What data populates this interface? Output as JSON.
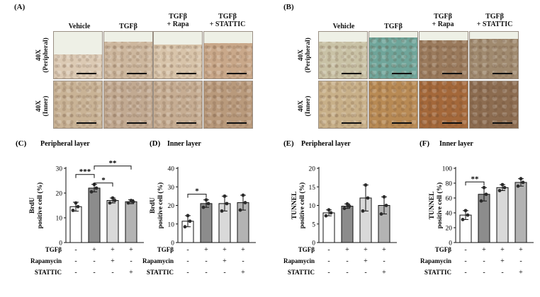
{
  "panel_A": {
    "label": "(A)",
    "column_headers": [
      "Vehicle",
      "TGFβ",
      "TGFβ\n+ Rapa",
      "TGFβ\n+ STATTIC"
    ],
    "row_labels": [
      "40X\n(Peripheral)",
      "40X\n(Inner)"
    ]
  },
  "panel_B": {
    "label": "(B)",
    "column_headers": [
      "Vehicle",
      "TGFβ",
      "TGFβ\n+ Rapa",
      "TGFβ\n+ STATTIC"
    ],
    "row_labels": [
      "40X\n(Peripheral)",
      "40X\n(Inner)"
    ]
  },
  "treatment_labels": [
    "TGFβ",
    "Rapamycin",
    "STATTIC"
  ],
  "treatment_matrix": [
    [
      "-",
      "+",
      "+",
      "+"
    ],
    [
      "-",
      "-",
      "+",
      "-"
    ],
    [
      "-",
      "-",
      "-",
      "+"
    ]
  ],
  "chart_data": [
    {
      "panel": "(C)",
      "type": "bar",
      "title": "Peripheral layer",
      "ylabel": "BrdU\npositive cell (%)",
      "ylim": [
        0,
        30
      ],
      "yticks": [
        0,
        10,
        20,
        30
      ],
      "values": [
        14.5,
        22,
        17,
        16.5
      ],
      "errors": [
        1.8,
        1.5,
        1.0,
        0.8
      ],
      "points": [
        [
          13,
          14.5,
          16
        ],
        [
          20.5,
          22,
          23.5
        ],
        [
          16,
          17,
          18
        ],
        [
          16,
          16.5,
          17
        ]
      ],
      "significance": [
        {
          "from": 0,
          "to": 1,
          "label": "***"
        },
        {
          "from": 1,
          "to": 2,
          "label": "*"
        },
        {
          "from": 1,
          "to": 3,
          "label": "**"
        }
      ]
    },
    {
      "panel": "(D)",
      "type": "bar",
      "title": "Inner layer",
      "ylabel": "BrdU\npositive cell (%)",
      "ylim": [
        0,
        40
      ],
      "yticks": [
        0,
        10,
        20,
        30,
        40
      ],
      "values": [
        11.5,
        21,
        21,
        21.5
      ],
      "errors": [
        3,
        2,
        4,
        4
      ],
      "points": [
        [
          8.5,
          11.5,
          14.5
        ],
        [
          19,
          21,
          23
        ],
        [
          17,
          21,
          25
        ],
        [
          17.5,
          21.5,
          25.5
        ]
      ],
      "significance": [
        {
          "from": 0,
          "to": 1,
          "label": "*"
        }
      ]
    },
    {
      "panel": "(E)",
      "type": "bar",
      "title": "Peripheral layer",
      "ylabel": "TUNNEL\npositive cell (%)",
      "ylim": [
        0,
        20
      ],
      "yticks": [
        0,
        5,
        10,
        15,
        20
      ],
      "values": [
        8,
        9.8,
        12,
        10
      ],
      "errors": [
        0.8,
        0.6,
        3.5,
        2.3
      ],
      "points": [
        [
          7.2,
          8,
          8.8
        ],
        [
          9.2,
          9.8,
          10.4
        ],
        [
          8.5,
          12,
          15.5
        ],
        [
          7.7,
          10,
          12.3
        ]
      ],
      "significance": []
    },
    {
      "panel": "(F)",
      "type": "bar",
      "title": "Inner layer",
      "ylabel": "TUNNEL\npositive cell (%)",
      "ylim": [
        0,
        100
      ],
      "yticks": [
        0,
        20,
        40,
        60,
        80,
        100
      ],
      "values": [
        37,
        65,
        74,
        81
      ],
      "errors": [
        6,
        9,
        4,
        5
      ],
      "points": [
        [
          31,
          37,
          43
        ],
        [
          56,
          65,
          74
        ],
        [
          70,
          74,
          78
        ],
        [
          76,
          81,
          86
        ]
      ],
      "significance": [
        {
          "from": 0,
          "to": 1,
          "label": "**"
        }
      ]
    }
  ],
  "colors": {
    "bar_fills": [
      "#ffffff",
      "#8c8c8c",
      "#d9d9d9",
      "#b3b3b3"
    ],
    "stroke": "#111111",
    "point": "#2a2a2a"
  },
  "micrographs": {
    "A_peripheral": [
      "#dccab4",
      "#cdb79e",
      "#d8c4aa",
      "#c9a88a"
    ],
    "A_inner": [
      "#c9b396",
      "#c2aa92",
      "#c6ad93",
      "#b99a7c"
    ],
    "B_peripheral": [
      "#c9c2a6",
      "#6fa59a",
      "#9a7a5c",
      "#a08a6f"
    ],
    "B_inner": [
      "#c8b089",
      "#b88a54",
      "#a4683a",
      "#8c6c50"
    ]
  }
}
